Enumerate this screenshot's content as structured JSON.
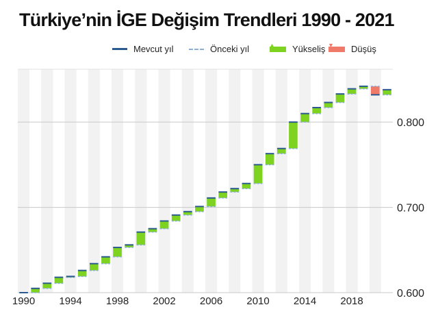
{
  "title": "Türkiye’nin İGE Değişim Trendleri 1990 - 2021",
  "legend": {
    "current": "Mevcut yıl",
    "previous": "Önceki yıl",
    "up": "Yükseliş",
    "down": "Düşüş"
  },
  "colors": {
    "current": "#2a5a8f",
    "previous": "#8aaed4",
    "up": "#7ed321",
    "down": "#f07a6a",
    "band": "#f2f2f2"
  },
  "chart_data": {
    "type": "waterfall",
    "title": "Türkiye’nin İGE Değişim Trendleri 1990 - 2021",
    "x": [
      1990,
      1991,
      1992,
      1993,
      1994,
      1995,
      1996,
      1997,
      1998,
      1999,
      2000,
      2001,
      2002,
      2003,
      2004,
      2005,
      2006,
      2007,
      2008,
      2009,
      2010,
      2011,
      2012,
      2013,
      2014,
      2015,
      2016,
      2017,
      2018,
      2019,
      2020,
      2021
    ],
    "values": [
      0.6,
      0.605,
      0.611,
      0.618,
      0.619,
      0.626,
      0.634,
      0.642,
      0.653,
      0.656,
      0.671,
      0.675,
      0.684,
      0.691,
      0.695,
      0.701,
      0.711,
      0.718,
      0.722,
      0.728,
      0.75,
      0.763,
      0.769,
      0.8,
      0.81,
      0.817,
      0.823,
      0.833,
      0.839,
      0.842,
      0.832,
      0.838
    ],
    "x_tick_labels": [
      "1990",
      "1994",
      "1998",
      "2002",
      "2006",
      "2010",
      "2014",
      "2018"
    ],
    "y_tick_labels": [
      "0.600",
      "0.700",
      "0.800"
    ],
    "ylim": [
      0.6,
      0.862
    ],
    "grid": true,
    "legend_position": "top"
  }
}
